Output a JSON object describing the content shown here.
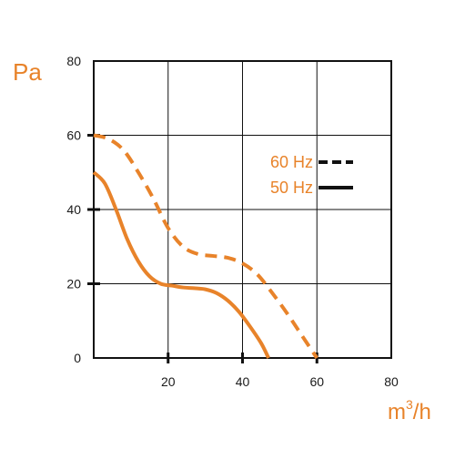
{
  "colors": {
    "curve": "#e8832a",
    "axis_text": "#1a1a1a",
    "label_orange": "#e8832a",
    "frame": "#111111",
    "grid": "#111111"
  },
  "chart_data": {
    "type": "line",
    "ylabel": "Pa",
    "xlabel_base": "m",
    "xlabel_sup": "3",
    "xlabel_tail": "/h",
    "xlim": [
      0,
      80
    ],
    "ylim": [
      0,
      80
    ],
    "x_ticks": [
      "20",
      "40",
      "60",
      "80"
    ],
    "y_ticks": [
      "0",
      "20",
      "40",
      "60",
      "80"
    ],
    "grid": true,
    "legend_position": "right-center",
    "series": [
      {
        "name": "60 Hz",
        "style": "dashed",
        "x": [
          0,
          4,
          8,
          12,
          16,
          20,
          24,
          28,
          32,
          36,
          40,
          44,
          48,
          52,
          56,
          60
        ],
        "y": [
          60,
          59,
          56,
          50,
          43,
          35,
          30,
          28,
          27.5,
          27,
          25.5,
          22.5,
          17.5,
          12,
          6,
          0
        ]
      },
      {
        "name": "50 Hz",
        "style": "solid",
        "x": [
          0,
          3,
          6,
          9,
          12,
          15,
          18,
          21,
          24,
          27,
          30,
          33,
          36,
          39,
          42,
          45,
          47
        ],
        "y": [
          50,
          47,
          40,
          32,
          26,
          22,
          20,
          19.5,
          19,
          18.8,
          18.5,
          17.5,
          15.5,
          12.5,
          8.5,
          4,
          0
        ]
      }
    ]
  }
}
